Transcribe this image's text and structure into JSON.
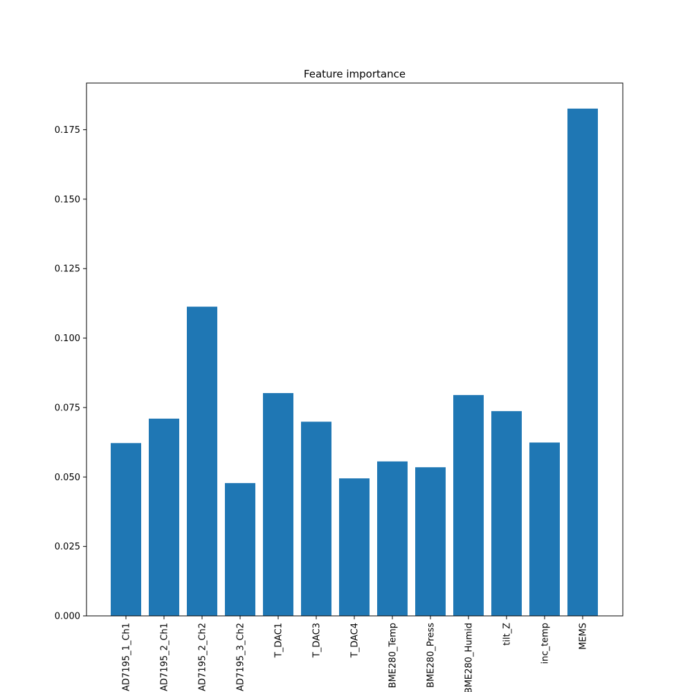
{
  "chart_data": {
    "type": "bar",
    "title": "Feature importance",
    "xlabel": "",
    "ylabel": "",
    "categories": [
      "AD7195_1_Ch1",
      "AD7195_2_Ch1",
      "AD7195_2_Ch2",
      "AD7195_3_Ch2",
      "T_DAC1",
      "T_DAC3",
      "T_DAC4",
      "BME280_Temp",
      "BME280_Press",
      "BME280_Humid",
      "tilt_Z",
      "inc_temp",
      "MEMS"
    ],
    "values": [
      0.0622,
      0.071,
      0.1113,
      0.0478,
      0.0802,
      0.0699,
      0.0495,
      0.0556,
      0.0535,
      0.0795,
      0.0737,
      0.0624,
      0.1826
    ],
    "ylim": [
      0,
      0.1918
    ],
    "yticks": [
      "0.000",
      "0.025",
      "0.050",
      "0.075",
      "0.100",
      "0.125",
      "0.150",
      "0.175"
    ],
    "ytick_values": [
      0,
      0.025,
      0.05,
      0.075,
      0.1,
      0.125,
      0.15,
      0.175
    ],
    "bar_color": "#1f77b4",
    "grid": false,
    "legend": "none"
  }
}
